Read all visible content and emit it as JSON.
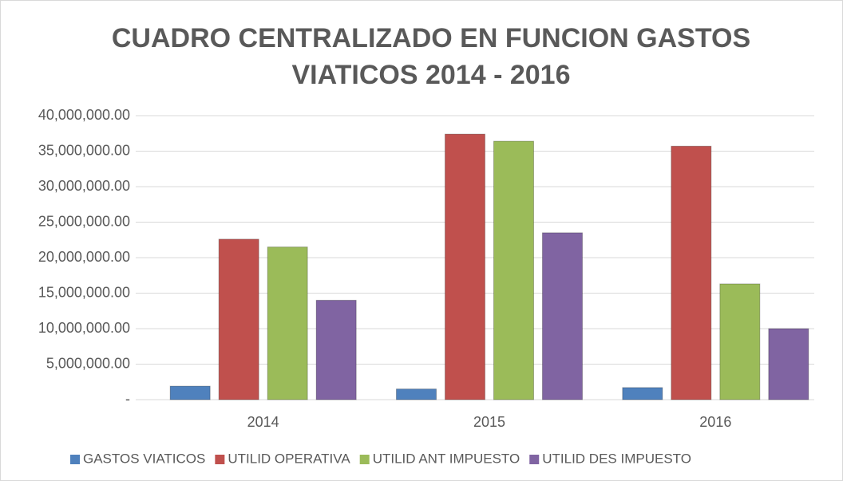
{
  "chart_data": {
    "type": "bar",
    "title": [
      "CUADRO CENTRALIZADO EN FUNCION GASTOS",
      "VIATICOS 2014 - 2016"
    ],
    "categories": [
      "2014",
      "2015",
      "2016"
    ],
    "series": [
      {
        "name": "GASTOS VIATICOS",
        "color": "#4f81bd",
        "values": [
          1900000,
          1500000,
          1700000
        ]
      },
      {
        "name": "UTILID OPERATIVA",
        "color": "#c0504d",
        "values": [
          22600000,
          37400000,
          35700000
        ]
      },
      {
        "name": "UTILID ANT IMPUESTO",
        "color": "#9bbb59",
        "values": [
          21500000,
          36400000,
          16300000
        ]
      },
      {
        "name": "UTILID DES IMPUESTO",
        "color": "#8064a2",
        "values": [
          14000000,
          23500000,
          10000000
        ]
      }
    ],
    "ylim": [
      0,
      40000000
    ],
    "yticks": [
      {
        "value": 0,
        "label": "-"
      },
      {
        "value": 5000000,
        "label": "5,000,000.00"
      },
      {
        "value": 10000000,
        "label": "10,000,000.00"
      },
      {
        "value": 15000000,
        "label": "15,000,000.00"
      },
      {
        "value": 20000000,
        "label": "20,000,000.00"
      },
      {
        "value": 25000000,
        "label": "25,000,000.00"
      },
      {
        "value": 30000000,
        "label": "30,000,000.00"
      },
      {
        "value": 35000000,
        "label": "35,000,000.00"
      },
      {
        "value": 40000000,
        "label": "40,000,000.00"
      }
    ],
    "grid": true,
    "legend": "bottom"
  }
}
